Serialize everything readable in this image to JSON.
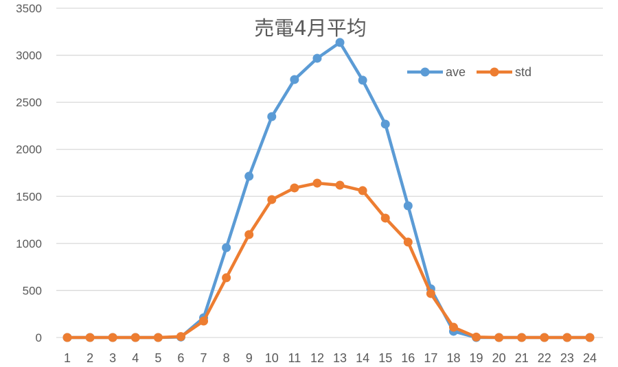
{
  "chart_data": {
    "type": "line",
    "title": "売電4月平均",
    "xlabel": "",
    "ylabel": "",
    "categories": [
      "1",
      "2",
      "3",
      "4",
      "5",
      "6",
      "7",
      "8",
      "9",
      "10",
      "11",
      "12",
      "13",
      "14",
      "15",
      "16",
      "17",
      "18",
      "19",
      "20",
      "21",
      "22",
      "23",
      "24"
    ],
    "series": [
      {
        "name": "ave",
        "color": "#5B9BD5",
        "values": [
          0,
          0,
          0,
          0,
          0,
          5,
          210,
          955,
          1714,
          2348,
          2742,
          2968,
          3136,
          2735,
          2268,
          1400,
          518,
          66,
          0,
          0,
          0,
          0,
          0,
          0
        ]
      },
      {
        "name": "std",
        "color": "#ED7D31",
        "values": [
          0,
          0,
          0,
          0,
          0,
          10,
          175,
          635,
          1094,
          1466,
          1590,
          1641,
          1619,
          1561,
          1269,
          1014,
          467,
          109,
          5,
          0,
          0,
          0,
          0,
          0
        ]
      }
    ],
    "ylim": [
      0,
      3500
    ],
    "yticks": [
      "0",
      "500",
      "1000",
      "1500",
      "2000",
      "2500",
      "3000",
      "3500"
    ],
    "grid": true,
    "legend_position": "top-right inside plot"
  }
}
